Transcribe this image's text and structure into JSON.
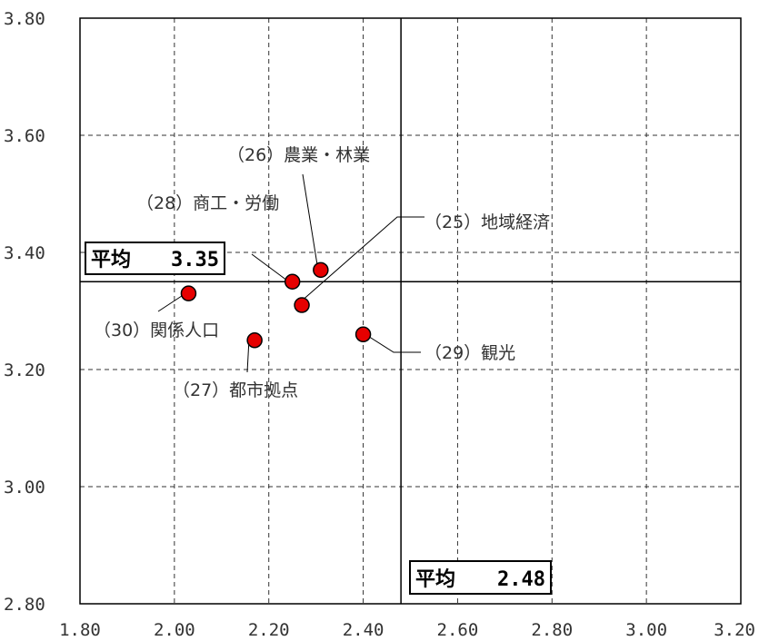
{
  "chart_data": {
    "type": "scatter",
    "xlim": [
      1.8,
      3.2
    ],
    "ylim": [
      2.8,
      3.8
    ],
    "xticks": [
      "1.80",
      "2.00",
      "2.20",
      "2.40",
      "2.60",
      "2.80",
      "3.00",
      "3.20"
    ],
    "yticks": [
      "2.80",
      "3.00",
      "3.20",
      "3.40",
      "3.60",
      "3.80"
    ],
    "grid": true,
    "points": [
      {
        "label": "（25）地域経済",
        "x": 2.27,
        "y": 3.31
      },
      {
        "label": "（26）農業・林業",
        "x": 2.31,
        "y": 3.37
      },
      {
        "label": "（27）都市拠点",
        "x": 2.17,
        "y": 3.25
      },
      {
        "label": "（28）商工・労働",
        "x": 2.25,
        "y": 3.35
      },
      {
        "label": "（29）観光",
        "x": 2.4,
        "y": 3.26
      },
      {
        "label": "（30）関係人口",
        "x": 2.03,
        "y": 3.33
      }
    ],
    "avg_x": {
      "label": "平均",
      "value": 2.48,
      "value_text": "2.48"
    },
    "avg_y": {
      "label": "平均",
      "value": 3.35,
      "value_text": "3.35"
    },
    "colors": {
      "point_fill": "#e60000",
      "point_stroke": "#000000",
      "grid": "#333333"
    }
  }
}
